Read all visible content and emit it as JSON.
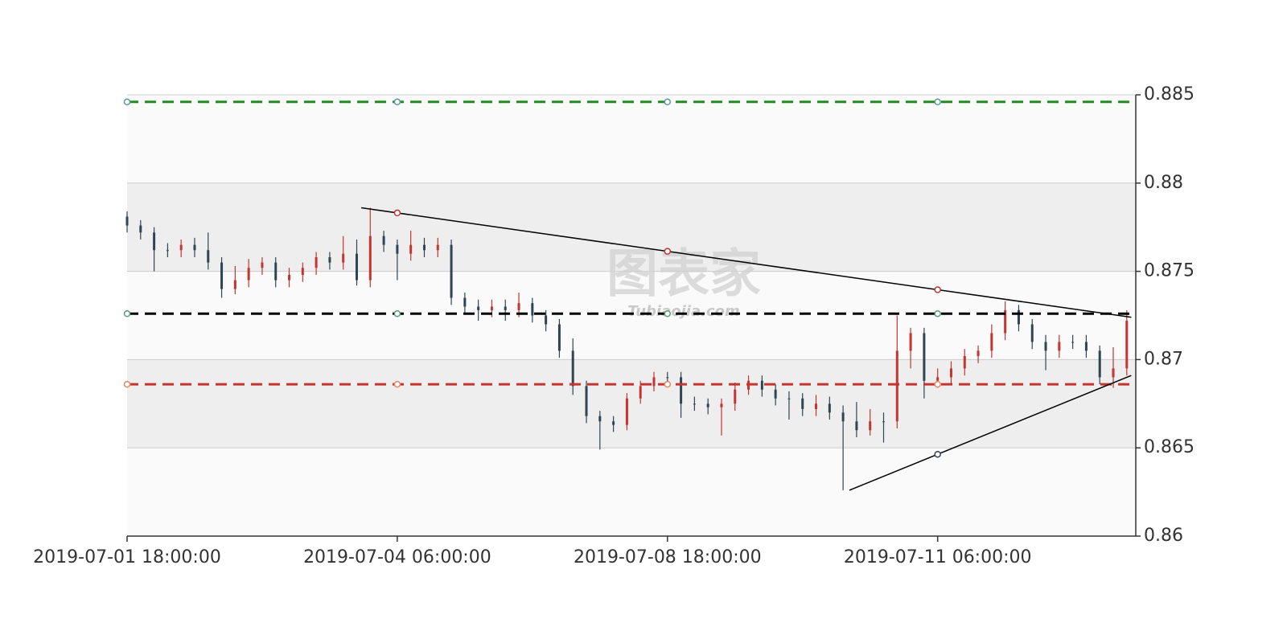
{
  "chart_data": {
    "type": "candlestick",
    "watermark": "图表家",
    "watermark_sub": "Tubiaojia.com",
    "xlim": [
      0,
      224
    ],
    "xticks": [
      {
        "value": 0,
        "label": "2019-07-01 18:00:00"
      },
      {
        "value": 60,
        "label": "2019-07-04 06:00:00"
      },
      {
        "value": 120,
        "label": "2019-07-08 18:00:00"
      },
      {
        "value": 180,
        "label": "2019-07-11 06:00:00"
      }
    ],
    "ylim": [
      0.86,
      0.885
    ],
    "yticks": [
      0.86,
      0.865,
      0.87,
      0.875,
      0.88,
      0.885
    ],
    "grid": true,
    "split_area_colors": [
      "#fafafa",
      "#eeeeee"
    ],
    "up_color": "#c23531",
    "down_color": "#2f4554",
    "x": [
      0,
      3,
      6,
      9,
      12,
      15,
      18,
      21,
      24,
      27,
      30,
      33,
      36,
      39,
      42,
      45,
      48,
      51,
      54,
      57,
      60,
      63,
      66,
      69,
      72,
      75,
      78,
      81,
      84,
      87,
      90,
      93,
      96,
      99,
      102,
      105,
      108,
      111,
      114,
      117,
      120,
      123,
      126,
      129,
      132,
      135,
      138,
      141,
      144,
      147,
      150,
      153,
      156,
      159,
      162,
      165,
      168,
      171,
      174,
      177,
      180,
      183,
      186,
      189,
      192,
      195,
      198,
      201,
      204,
      207,
      210,
      213,
      216,
      219,
      222
    ],
    "open": [
      0.8781,
      0.8776,
      0.8772,
      0.8762,
      0.8762,
      0.8765,
      0.8762,
      0.8755,
      0.874,
      0.8745,
      0.8752,
      0.8755,
      0.8745,
      0.8748,
      0.8752,
      0.8758,
      0.8755,
      0.876,
      0.8745,
      0.877,
      0.8765,
      0.876,
      0.8765,
      0.8762,
      0.8765,
      0.8735,
      0.873,
      0.8728,
      0.873,
      0.8728,
      0.8732,
      0.8725,
      0.872,
      0.8705,
      0.8685,
      0.8668,
      0.8665,
      0.8663,
      0.8678,
      0.8685,
      0.869,
      0.869,
      0.8675,
      0.8675,
      0.8673,
      0.8675,
      0.8683,
      0.8688,
      0.8683,
      0.8678,
      0.8678,
      0.8672,
      0.8675,
      0.867,
      0.8665,
      0.866,
      0.8665,
      0.8665,
      0.8705,
      0.8715,
      0.8688,
      0.869,
      0.8695,
      0.8702,
      0.8705,
      0.8715,
      0.8728,
      0.872,
      0.871,
      0.8705,
      0.871,
      0.871,
      0.8705,
      0.869,
      0.8695
    ],
    "high": [
      0.8784,
      0.8779,
      0.8775,
      0.8766,
      0.8768,
      0.8769,
      0.8772,
      0.8758,
      0.8753,
      0.8757,
      0.8758,
      0.8758,
      0.8752,
      0.8755,
      0.8761,
      0.8761,
      0.877,
      0.8768,
      0.8786,
      0.8773,
      0.8768,
      0.8773,
      0.8769,
      0.8769,
      0.8768,
      0.8738,
      0.8734,
      0.8734,
      0.8734,
      0.8738,
      0.8735,
      0.8728,
      0.8723,
      0.8712,
      0.8688,
      0.8671,
      0.8668,
      0.8681,
      0.8688,
      0.8693,
      0.8693,
      0.8693,
      0.8679,
      0.8678,
      0.8678,
      0.8687,
      0.8691,
      0.8691,
      0.8686,
      0.8682,
      0.8681,
      0.868,
      0.8679,
      0.8674,
      0.8676,
      0.8672,
      0.867,
      0.8725,
      0.8718,
      0.8718,
      0.8695,
      0.8699,
      0.8706,
      0.8708,
      0.872,
      0.8733,
      0.8731,
      0.8723,
      0.8714,
      0.8714,
      0.8714,
      0.8714,
      0.8708,
      0.8707,
      0.8728
    ],
    "low": [
      0.8772,
      0.8768,
      0.875,
      0.8758,
      0.8758,
      0.8758,
      0.8751,
      0.8735,
      0.8737,
      0.8741,
      0.8748,
      0.8741,
      0.8741,
      0.8744,
      0.8748,
      0.8751,
      0.8751,
      0.8742,
      0.8741,
      0.8761,
      0.8745,
      0.8756,
      0.8758,
      0.8758,
      0.8731,
      0.8726,
      0.8722,
      0.8724,
      0.8722,
      0.8724,
      0.8721,
      0.8716,
      0.8701,
      0.868,
      0.8664,
      0.8649,
      0.8659,
      0.866,
      0.8675,
      0.8682,
      0.8686,
      0.8667,
      0.8671,
      0.8669,
      0.8657,
      0.8671,
      0.868,
      0.8679,
      0.8674,
      0.8666,
      0.8668,
      0.8668,
      0.8666,
      0.8626,
      0.8656,
      0.8657,
      0.8653,
      0.8661,
      0.8695,
      0.8678,
      0.8684,
      0.8686,
      0.8691,
      0.8698,
      0.8701,
      0.8711,
      0.8716,
      0.8706,
      0.8694,
      0.8701,
      0.8706,
      0.8701,
      0.8686,
      0.8684,
      0.8691
    ],
    "close": [
      0.8776,
      0.8772,
      0.8762,
      0.8762,
      0.8765,
      0.8762,
      0.8755,
      0.874,
      0.8745,
      0.8752,
      0.8755,
      0.8745,
      0.8748,
      0.8752,
      0.8758,
      0.8755,
      0.876,
      0.8745,
      0.877,
      0.8765,
      0.876,
      0.8765,
      0.8762,
      0.8765,
      0.8735,
      0.873,
      0.8728,
      0.873,
      0.8728,
      0.8732,
      0.8725,
      0.872,
      0.8705,
      0.8685,
      0.8668,
      0.8665,
      0.8663,
      0.8678,
      0.8685,
      0.869,
      0.869,
      0.8675,
      0.8675,
      0.8673,
      0.8675,
      0.8683,
      0.8688,
      0.8683,
      0.8678,
      0.8678,
      0.8672,
      0.8675,
      0.867,
      0.8665,
      0.866,
      0.8665,
      0.8665,
      0.8705,
      0.8715,
      0.8688,
      0.869,
      0.8695,
      0.8702,
      0.8705,
      0.8715,
      0.8728,
      0.872,
      0.871,
      0.8705,
      0.871,
      0.871,
      0.8705,
      0.869,
      0.8695,
      0.8722
    ],
    "marker_x": [
      0,
      60,
      120,
      180
    ],
    "lines": [
      {
        "value": 0.8846,
        "color": "#228b22",
        "marker_color": "#5b9a9a"
      },
      {
        "value": 0.8726,
        "color": "#000000",
        "marker_color": "#5b9a7a"
      },
      {
        "value": 0.8686,
        "color": "#c23531",
        "marker_color": "#e08a6a"
      }
    ],
    "trend_lines": [
      {
        "x": [
          52,
          223
        ],
        "y": [
          0.8786,
          0.8724
        ],
        "color": "#000000",
        "marker_color": "#c23531"
      },
      {
        "x": [
          160.4,
          223
        ],
        "y": [
          0.8626,
          0.8691
        ],
        "color": "#000000",
        "marker_color": "#2f4554"
      }
    ]
  }
}
